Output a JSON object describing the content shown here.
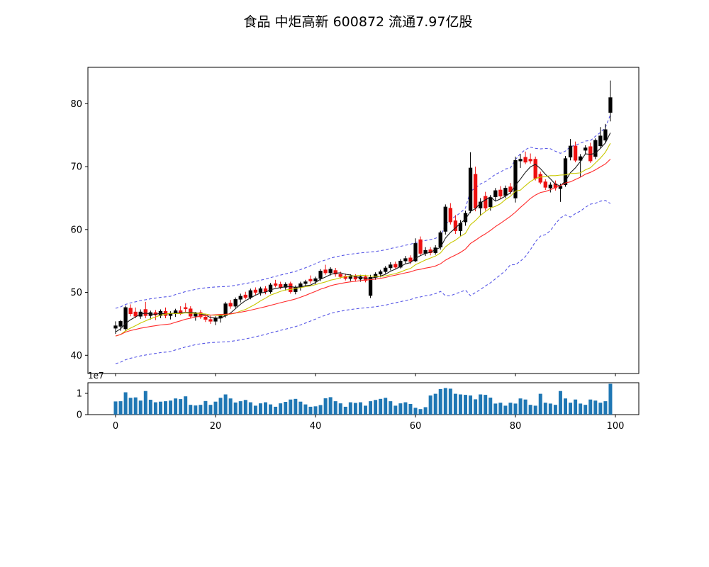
{
  "title": "食品 中炬高新 600872 流通7.97亿股",
  "colors": {
    "up_candle": "#000000",
    "down_candle": "#ee1111",
    "ma5": "#1a1a1a",
    "ma10": "#c8c800",
    "ma20": "#ff2a2a",
    "bollinger": "#5656e6",
    "volume_bar": "#1f77b4",
    "axis": "#000000",
    "background": "#ffffff"
  },
  "chart_data": [
    {
      "type": "candlestick",
      "name": "price-kline",
      "x_description": "trading day index 0..99",
      "ylim": [
        37.1,
        85.8
      ],
      "yticks": [
        40,
        50,
        60,
        70,
        80
      ],
      "xlim": [
        -5.5,
        104.7
      ],
      "xticks": [
        0,
        20,
        40,
        60,
        80,
        100
      ],
      "xtick_labels_visible": false,
      "legend": "none",
      "grid": false,
      "up_color": "#000000",
      "down_color": "#ee1111",
      "overlays": [
        {
          "name": "MA5",
          "type": "sma",
          "window": 5,
          "color": "#1a1a1a",
          "style": "solid"
        },
        {
          "name": "MA10",
          "type": "sma",
          "window": 10,
          "color": "#c8c800",
          "style": "solid"
        },
        {
          "name": "MA20",
          "type": "sma",
          "window": 20,
          "color": "#ff2a2a",
          "style": "solid"
        },
        {
          "name": "BOLL-upper",
          "type": "boll_upper",
          "window": 20,
          "k": 2,
          "std_floor": 2.2,
          "color": "#5656e6",
          "style": "dashed"
        },
        {
          "name": "BOLL-lower",
          "type": "boll_lower",
          "window": 20,
          "k": 2,
          "std_floor": 2.2,
          "color": "#5656e6",
          "style": "dashed"
        }
      ],
      "pre_window_closes": [
        41.8,
        42.1,
        42.4,
        42.7,
        43.0,
        43.3,
        43.6,
        44.0
      ],
      "ohlc": [
        [
          44.3,
          45.4,
          43.4,
          44.7
        ],
        [
          44.6,
          45.6,
          43.9,
          45.4
        ],
        [
          44.2,
          47.9,
          43.9,
          47.6
        ],
        [
          47.5,
          48.1,
          46.2,
          46.6
        ],
        [
          46.9,
          47.6,
          45.9,
          46.2
        ],
        [
          46.2,
          47.3,
          45.8,
          46.9
        ],
        [
          47.3,
          48.5,
          45.9,
          46.3
        ],
        [
          46.3,
          47.1,
          45.7,
          46.8
        ],
        [
          46.8,
          47.2,
          45.6,
          46.4
        ],
        [
          46.3,
          47.3,
          45.9,
          47.0
        ],
        [
          47.0,
          47.6,
          45.9,
          46.3
        ],
        [
          46.3,
          47.0,
          45.7,
          46.7
        ],
        [
          46.6,
          47.4,
          46.1,
          47.1
        ],
        [
          47.1,
          47.8,
          46.4,
          46.6
        ],
        [
          47.6,
          48.3,
          46.9,
          47.4
        ],
        [
          47.4,
          47.8,
          45.9,
          46.2
        ],
        [
          46.2,
          46.9,
          45.5,
          46.6
        ],
        [
          46.8,
          47.2,
          45.8,
          46.1
        ],
        [
          46.1,
          46.6,
          45.3,
          45.7
        ],
        [
          45.7,
          46.3,
          45.0,
          45.4
        ],
        [
          45.4,
          46.2,
          44.8,
          45.9
        ],
        [
          45.9,
          46.5,
          45.2,
          46.3
        ],
        [
          46.3,
          48.5,
          46.0,
          48.2
        ],
        [
          48.3,
          48.8,
          47.4,
          47.8
        ],
        [
          47.8,
          49.2,
          47.5,
          48.9
        ],
        [
          48.9,
          49.8,
          48.4,
          49.4
        ],
        [
          49.6,
          50.1,
          48.9,
          49.2
        ],
        [
          49.2,
          50.6,
          48.9,
          50.3
        ],
        [
          50.4,
          50.8,
          49.6,
          50.0
        ],
        [
          50.0,
          50.9,
          49.5,
          50.6
        ],
        [
          50.6,
          51.0,
          49.7,
          50.1
        ],
        [
          50.1,
          51.5,
          49.8,
          51.2
        ],
        [
          51.4,
          52.0,
          50.8,
          51.1
        ],
        [
          51.3,
          51.7,
          50.5,
          50.8
        ],
        [
          50.8,
          51.6,
          50.3,
          51.3
        ],
        [
          51.4,
          51.7,
          49.8,
          50.1
        ],
        [
          50.1,
          51.1,
          49.7,
          50.8
        ],
        [
          50.8,
          51.7,
          50.3,
          51.4
        ],
        [
          51.4,
          52.0,
          51.0,
          51.7
        ],
        [
          52.1,
          52.7,
          51.4,
          51.8
        ],
        [
          51.8,
          52.5,
          51.3,
          52.2
        ],
        [
          52.2,
          53.7,
          51.8,
          53.4
        ],
        [
          53.6,
          54.4,
          52.8,
          53.1
        ],
        [
          53.1,
          54.0,
          52.7,
          53.7
        ],
        [
          53.5,
          53.9,
          52.5,
          52.9
        ],
        [
          52.9,
          53.3,
          52.2,
          52.5
        ],
        [
          52.6,
          53.0,
          51.9,
          52.2
        ],
        [
          52.2,
          52.9,
          51.8,
          52.6
        ],
        [
          52.6,
          52.9,
          51.7,
          52.1
        ],
        [
          52.1,
          52.8,
          51.7,
          52.5
        ],
        [
          52.5,
          52.8,
          51.6,
          51.9
        ],
        [
          49.5,
          52.8,
          49.1,
          52.4
        ],
        [
          52.4,
          53.2,
          52.0,
          52.9
        ],
        [
          52.9,
          53.6,
          52.4,
          53.3
        ],
        [
          53.3,
          54.2,
          53.0,
          53.9
        ],
        [
          53.9,
          54.8,
          53.5,
          54.4
        ],
        [
          54.5,
          54.9,
          53.7,
          54.0
        ],
        [
          54.0,
          55.3,
          53.8,
          55.0
        ],
        [
          55.0,
          55.8,
          54.6,
          55.4
        ],
        [
          55.5,
          55.9,
          54.5,
          54.9
        ],
        [
          55.0,
          58.6,
          54.8,
          57.8
        ],
        [
          58.4,
          58.9,
          55.9,
          56.2
        ],
        [
          56.2,
          57.2,
          55.8,
          56.7
        ],
        [
          56.8,
          57.2,
          55.9,
          56.3
        ],
        [
          56.3,
          57.5,
          56.0,
          57.1
        ],
        [
          57.2,
          59.8,
          56.8,
          59.5
        ],
        [
          59.7,
          64.0,
          59.2,
          63.6
        ],
        [
          63.4,
          64.2,
          60.8,
          61.2
        ],
        [
          61.4,
          62.3,
          59.3,
          59.8
        ],
        [
          59.8,
          61.5,
          59.0,
          61.0
        ],
        [
          61.2,
          63.0,
          60.6,
          62.6
        ],
        [
          63.0,
          72.3,
          62.6,
          69.8
        ],
        [
          68.8,
          70.0,
          62.9,
          63.4
        ],
        [
          63.4,
          65.0,
          62.2,
          64.4
        ],
        [
          65.3,
          66.0,
          63.0,
          63.4
        ],
        [
          63.6,
          65.5,
          63.0,
          65.1
        ],
        [
          65.2,
          66.6,
          64.6,
          66.2
        ],
        [
          66.3,
          66.9,
          64.9,
          65.3
        ],
        [
          65.4,
          67.0,
          65.0,
          66.6
        ],
        [
          66.8,
          67.4,
          65.6,
          66.0
        ],
        [
          65.0,
          71.6,
          64.3,
          71.0
        ],
        [
          70.9,
          72.0,
          69.8,
          71.2
        ],
        [
          71.5,
          72.4,
          70.4,
          70.7
        ],
        [
          71.2,
          72.1,
          70.5,
          70.9
        ],
        [
          71.2,
          71.6,
          67.8,
          68.1
        ],
        [
          68.8,
          69.2,
          67.2,
          67.5
        ],
        [
          67.6,
          68.0,
          66.3,
          66.7
        ],
        [
          66.6,
          67.5,
          65.9,
          67.1
        ],
        [
          67.3,
          67.8,
          66.2,
          66.6
        ],
        [
          66.5,
          67.3,
          64.4,
          66.9
        ],
        [
          67.1,
          71.7,
          66.8,
          71.3
        ],
        [
          71.5,
          74.4,
          71.0,
          73.3
        ],
        [
          73.3,
          74.0,
          70.7,
          71.0
        ],
        [
          71.0,
          72.0,
          68.4,
          71.6
        ],
        [
          72.6,
          73.4,
          72.0,
          73.0
        ],
        [
          73.2,
          73.8,
          70.6,
          70.9
        ],
        [
          71.6,
          74.5,
          71.2,
          74.2
        ],
        [
          73.3,
          76.3,
          73.0,
          74.9
        ],
        [
          74.2,
          76.8,
          73.8,
          75.9
        ],
        [
          78.6,
          83.7,
          77.2,
          81.0
        ]
      ]
    },
    {
      "type": "bar",
      "name": "volume",
      "unit_multiplier_label": "1e7",
      "bar_color": "#1f77b4",
      "ylim": [
        0,
        1.5
      ],
      "yticks": [
        0,
        1
      ],
      "xticks": [
        0,
        20,
        40,
        60,
        80,
        100
      ],
      "values": [
        0.62,
        0.63,
        1.05,
        0.79,
        0.81,
        0.66,
        1.11,
        0.7,
        0.58,
        0.61,
        0.63,
        0.66,
        0.76,
        0.73,
        0.86,
        0.46,
        0.43,
        0.46,
        0.64,
        0.46,
        0.61,
        0.79,
        0.95,
        0.76,
        0.57,
        0.63,
        0.69,
        0.58,
        0.42,
        0.53,
        0.58,
        0.48,
        0.37,
        0.53,
        0.6,
        0.71,
        0.74,
        0.61,
        0.48,
        0.37,
        0.39,
        0.45,
        0.77,
        0.82,
        0.63,
        0.53,
        0.37,
        0.58,
        0.55,
        0.58,
        0.42,
        0.63,
        0.69,
        0.74,
        0.79,
        0.63,
        0.42,
        0.53,
        0.58,
        0.5,
        0.32,
        0.26,
        0.35,
        0.9,
        0.98,
        1.2,
        1.25,
        1.22,
        0.98,
        0.95,
        0.93,
        0.9,
        0.72,
        0.95,
        0.93,
        0.8,
        0.52,
        0.56,
        0.42,
        0.56,
        0.52,
        0.76,
        0.71,
        0.46,
        0.42,
        0.98,
        0.56,
        0.52,
        0.46,
        1.11,
        0.76,
        0.56,
        0.71,
        0.52,
        0.46,
        0.71,
        0.66,
        0.56,
        0.63,
        1.45
      ]
    }
  ]
}
